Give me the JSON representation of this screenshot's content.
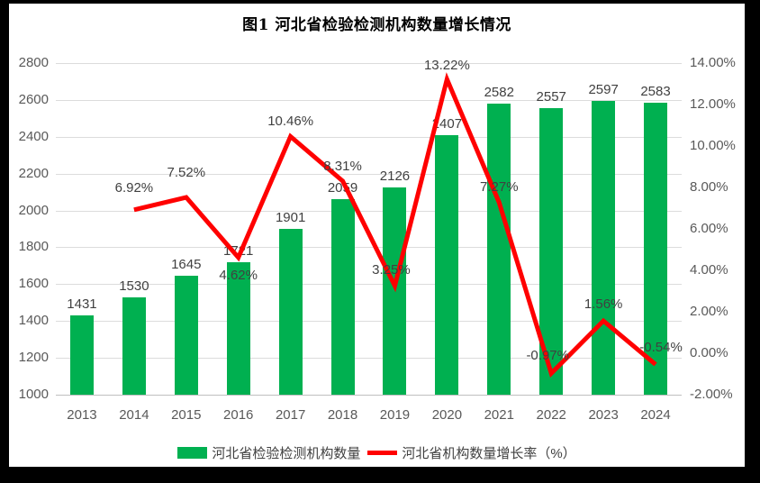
{
  "title": "图1 河北省检验检测机构数量增长情况",
  "legend": {
    "bars_label": "河北省检验检测机构数量",
    "line_label": "河北省机构数量增长率（%）"
  },
  "colors": {
    "bar": "#00B050",
    "line": "#FF0000",
    "grid": "#DCDCDC",
    "axis_line": "#BFBFBF",
    "tick_text": "#595959",
    "data_label": "#404040",
    "frame": "#000000",
    "background": "#FFFFFF"
  },
  "chart_data": {
    "type": "combo-bar-line",
    "title": "图1 河北省检验检测机构数量增长情况",
    "categories": [
      "2013",
      "2014",
      "2015",
      "2016",
      "2017",
      "2018",
      "2019",
      "2020",
      "2021",
      "2022",
      "2023",
      "2024"
    ],
    "series": [
      {
        "name": "河北省检验检测机构数量",
        "type": "bar",
        "axis": "left",
        "values": [
          1431,
          1530,
          1645,
          1721,
          1901,
          2059,
          2126,
          2407,
          2582,
          2557,
          2597,
          2583
        ],
        "value_labels": [
          "1431",
          "1530",
          "1645",
          "1721",
          "1901",
          "2059",
          "2126",
          "2407",
          "2582",
          "2557",
          "2597",
          "2583"
        ]
      },
      {
        "name": "河北省机构数量增长率（%）",
        "type": "line",
        "axis": "right",
        "x": [
          "2014",
          "2015",
          "2016",
          "2017",
          "2018",
          "2019",
          "2020",
          "2021",
          "2022",
          "2023",
          "2024"
        ],
        "values": [
          6.92,
          7.52,
          4.62,
          10.46,
          8.31,
          3.25,
          13.22,
          7.27,
          -0.97,
          1.56,
          -0.54
        ],
        "value_labels": [
          "6.92%",
          "7.52%",
          "4.62%",
          "10.46%",
          "8.31%",
          "3.25%",
          "13.22%",
          "7.27%",
          "-0.97%",
          "1.56%",
          "-0.54%"
        ]
      }
    ],
    "left_axis": {
      "min": 1000,
      "max": 2800,
      "step": 200,
      "ticks_top_to_bottom": [
        "2800",
        "2600",
        "2400",
        "2200",
        "2000",
        "1800",
        "1600",
        "1400",
        "1200",
        "1000"
      ]
    },
    "right_axis": {
      "min": -2,
      "max": 14,
      "step": 2,
      "ticks_top_to_bottom": [
        "14.00%",
        "12.00%",
        "10.00%",
        "8.00%",
        "6.00%",
        "4.00%",
        "2.00%",
        "0.00%",
        "-2.00%"
      ]
    },
    "grid": true,
    "legend_position": "bottom"
  }
}
